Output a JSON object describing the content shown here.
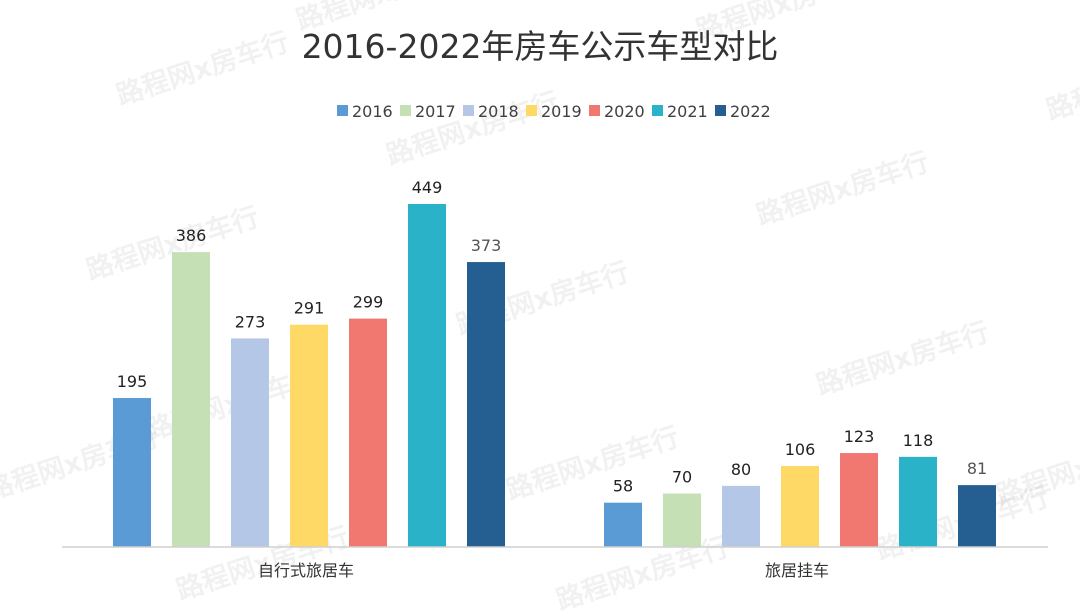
{
  "chart_data": {
    "type": "bar",
    "title": "2016-2022年房车公示车型对比",
    "categories": [
      "自行式旅居车",
      "旅居挂车"
    ],
    "series": [
      {
        "name": "2016",
        "color": "#5B9BD5",
        "values": [
          195,
          58
        ]
      },
      {
        "name": "2017",
        "color": "#C5E0B4",
        "values": [
          386,
          70
        ]
      },
      {
        "name": "2018",
        "color": "#B4C7E7",
        "values": [
          273,
          80
        ]
      },
      {
        "name": "2019",
        "color": "#FFD966",
        "values": [
          291,
          106
        ]
      },
      {
        "name": "2020",
        "color": "#F07870",
        "values": [
          299,
          123
        ]
      },
      {
        "name": "2021",
        "color": "#2AB3C8",
        "values": [
          449,
          118
        ]
      },
      {
        "name": "2022",
        "color": "#255E91",
        "values": [
          373,
          81
        ]
      }
    ],
    "xlabel": "",
    "ylabel": "",
    "ylim": [
      0,
      500
    ],
    "grid": false,
    "legend_position": "top"
  },
  "watermark_text": "路程网x房车行"
}
